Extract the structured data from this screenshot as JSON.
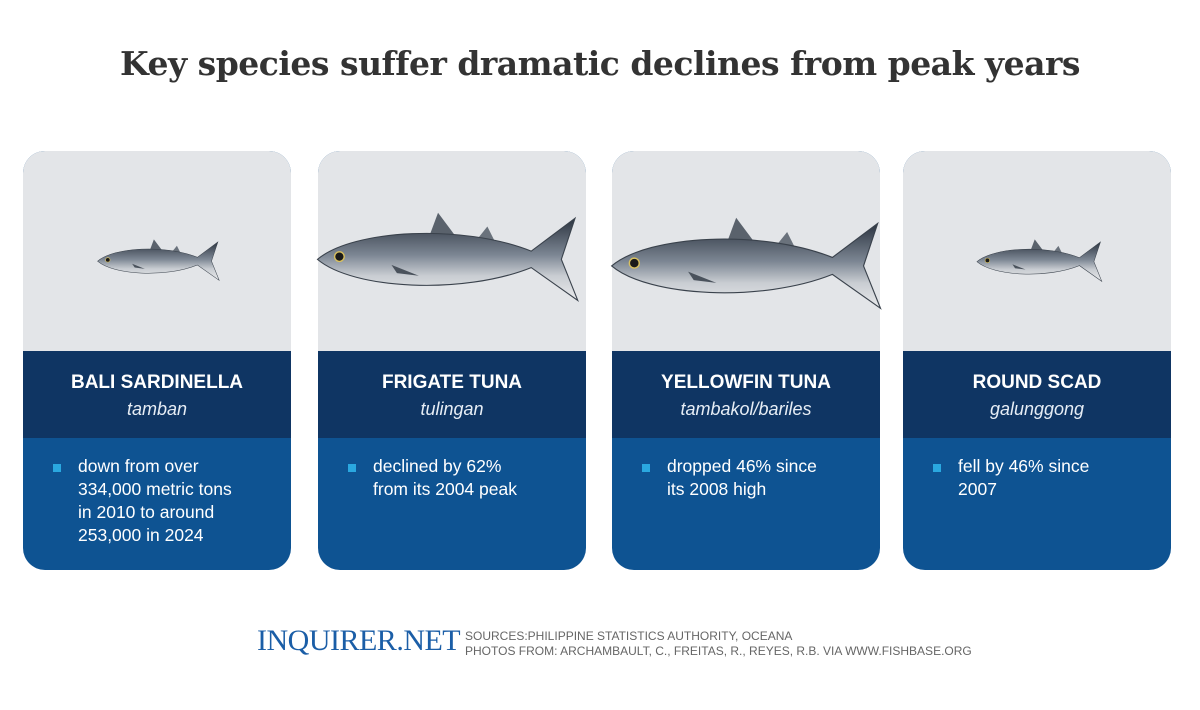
{
  "header": {
    "title": "Key species suffer dramatic declines from peak years"
  },
  "cards": [
    {
      "name": "BALI SARDINELLA",
      "local_name": "tamban",
      "description_lines": [
        "down from over",
        "334,000 metric tons",
        "in 2010 to around",
        "253,000 in 2024"
      ]
    },
    {
      "name": "FRIGATE TUNA",
      "local_name": "tulingan",
      "description_lines": [
        "declined by 62%",
        "from its 2004 peak"
      ]
    },
    {
      "name": "YELLOWFIN TUNA",
      "local_name": "tambakol/bariles",
      "description_lines": [
        "dropped 46% since",
        "its 2008 high"
      ]
    },
    {
      "name": "ROUND SCAD",
      "local_name": "galunggong",
      "description_lines": [
        "fell by 46% since",
        "2007"
      ]
    }
  ],
  "footer": {
    "logo": "INQUIRER.NET",
    "sources": "SOURCES:PHILIPPINE STATISTICS AUTHORITY, OCEANA",
    "photos": "PHOTOS FROM: ARCHAMBAULT, C.,  FREITAS, R., REYES, R.B. VIA WWW.FISHBASE.ORG"
  }
}
